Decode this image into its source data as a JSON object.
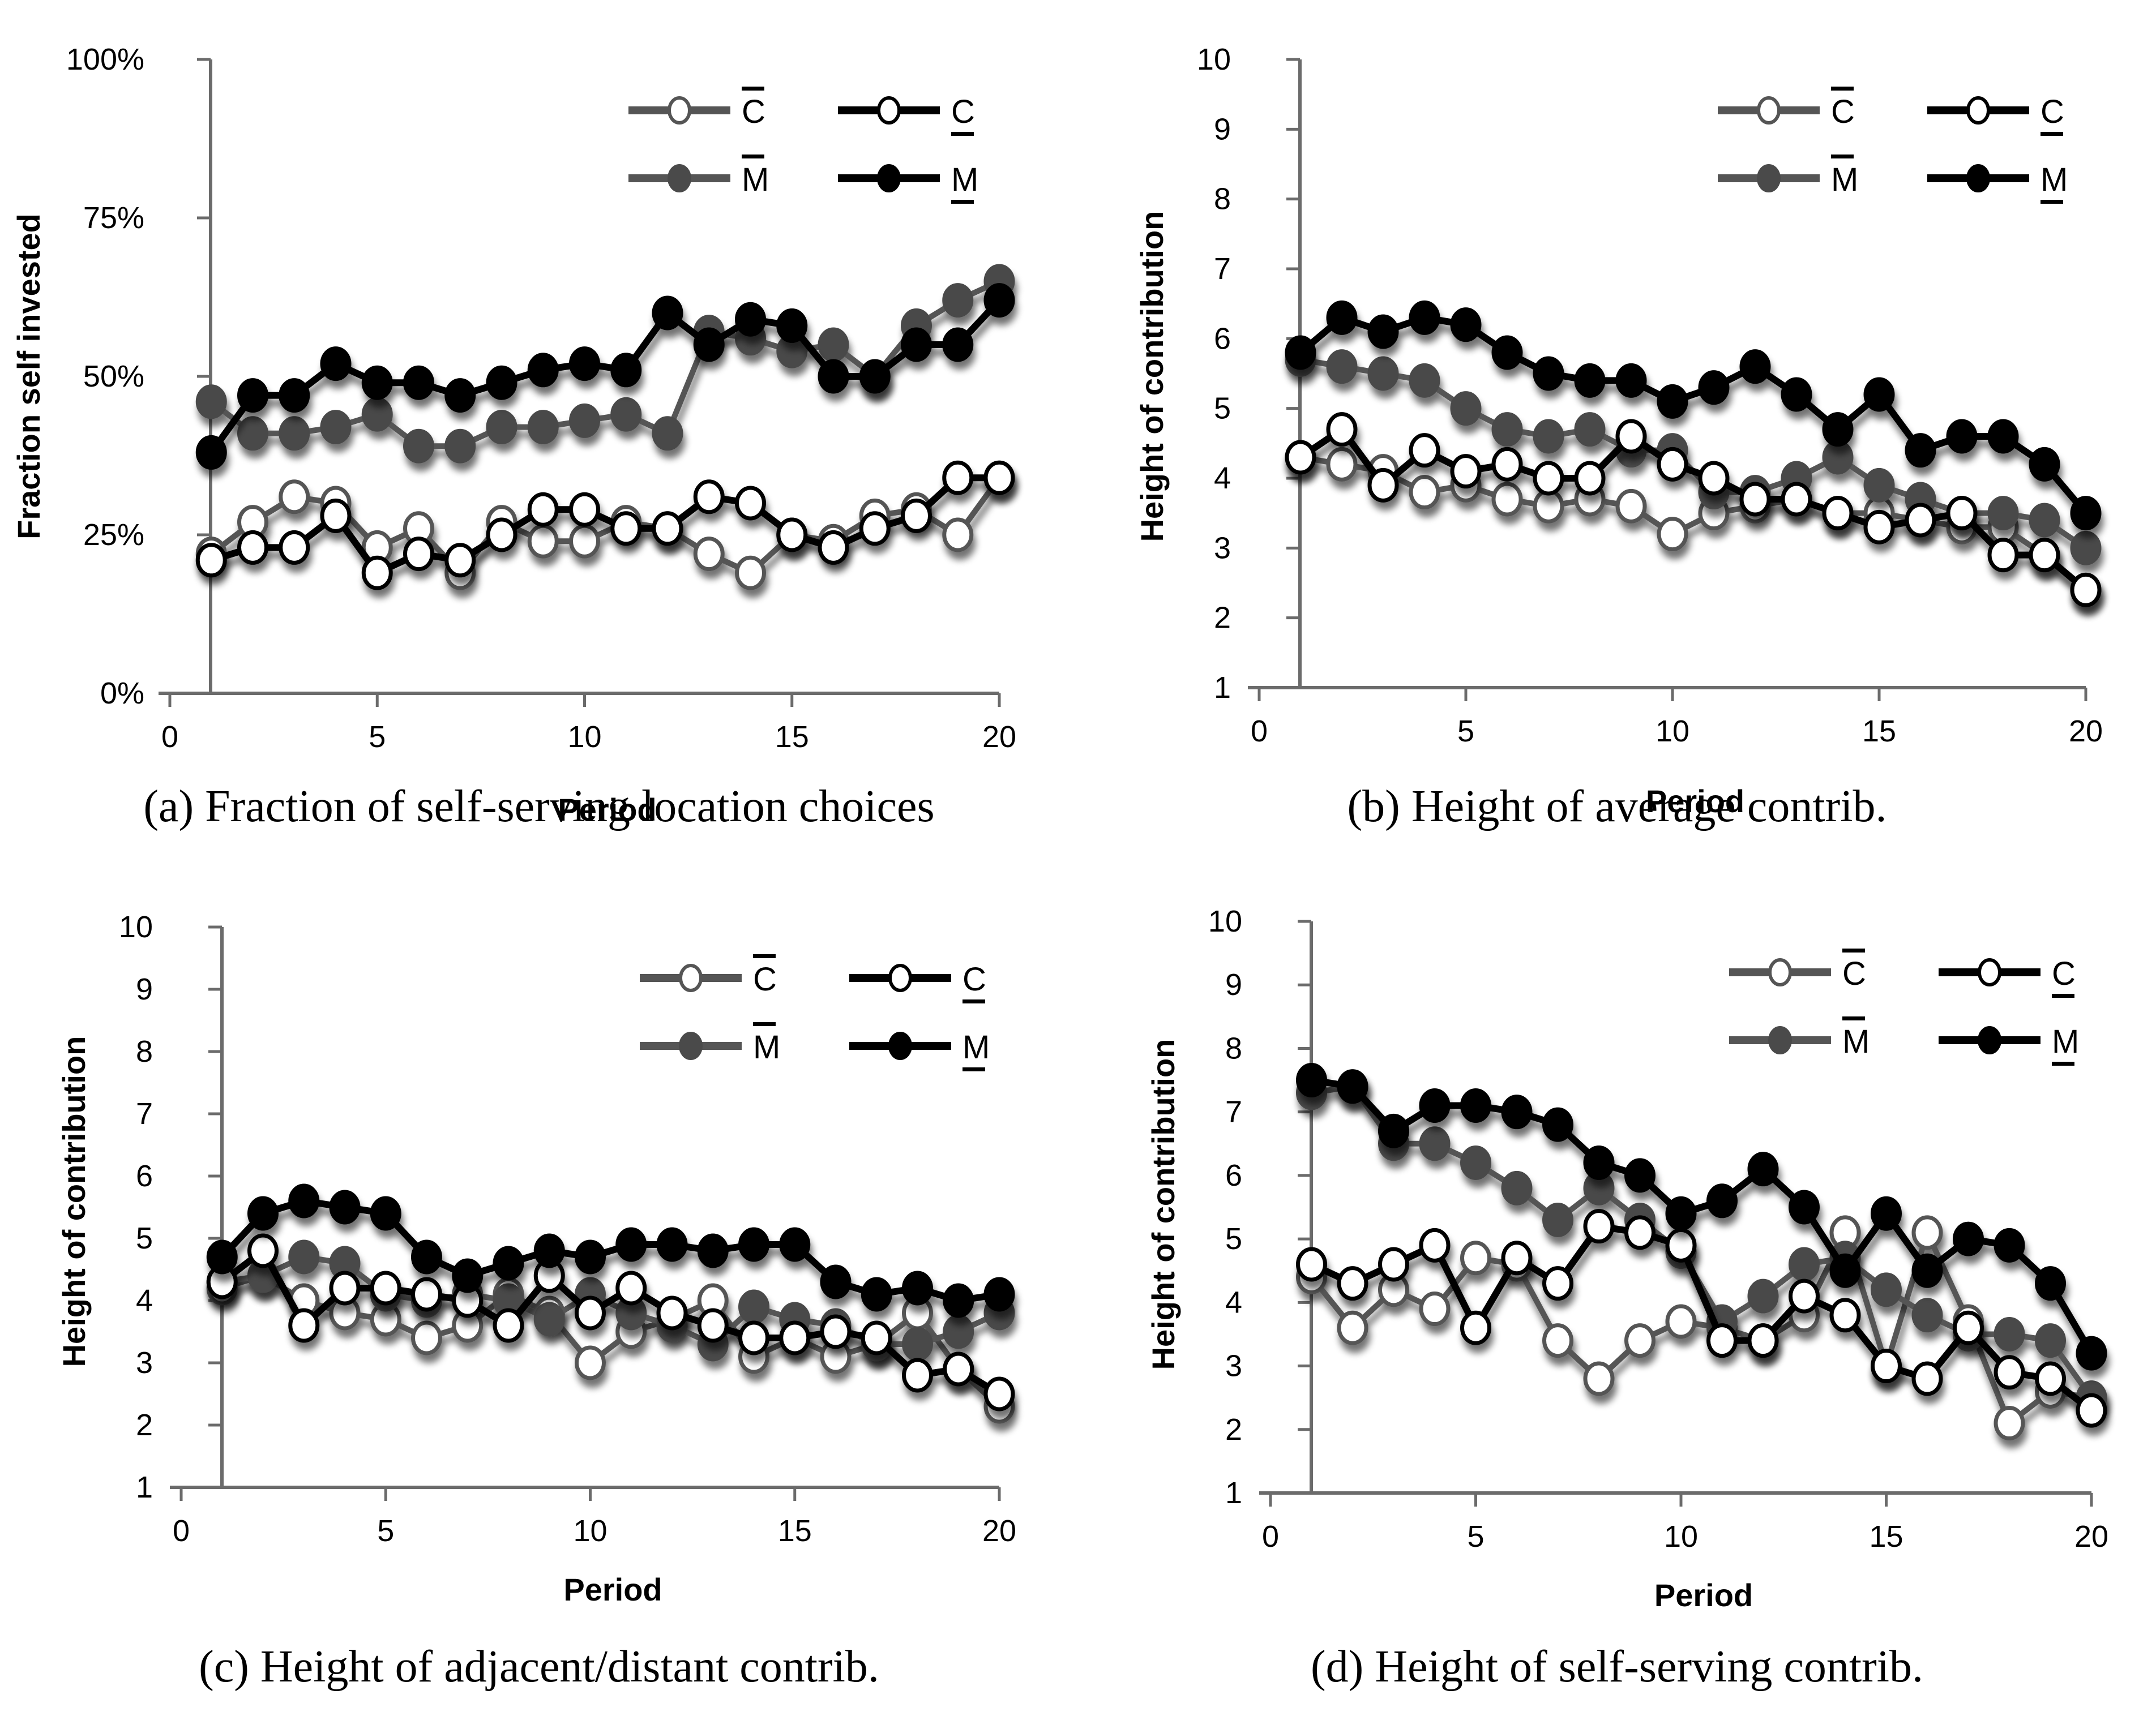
{
  "figure": {
    "captions": [
      "(a) Fraction of self-serving location choices",
      "(b) Height of average contrib.",
      "(c) Height of adjacent/distant contrib.",
      "(d) Height of self-serving contrib."
    ]
  },
  "legend": {
    "entries": [
      {
        "key": "Cbar",
        "letter": "C",
        "mark": "overline",
        "color": "#555555",
        "marker": "open"
      },
      {
        "key": "Cund",
        "letter": "C",
        "mark": "underline",
        "color": "#000000",
        "marker": "open"
      },
      {
        "key": "Mbar",
        "letter": "M",
        "mark": "overline",
        "color": "#555555",
        "marker": "filled"
      },
      {
        "key": "Mund",
        "letter": "M",
        "mark": "underline",
        "color": "#000000",
        "marker": "filled"
      }
    ]
  },
  "chart_data": [
    {
      "type": "line",
      "title": "",
      "caption": "(a) Fraction of self-serving location choices",
      "xlabel": "Period",
      "ylabel": "Fraction self invested",
      "xlim": [
        0,
        20
      ],
      "ylim": [
        0,
        100
      ],
      "xticks": [
        "0",
        "5",
        "10",
        "15",
        "20"
      ],
      "yticks": [
        "0%",
        "25%",
        "50%",
        "75%",
        "100%"
      ],
      "ytick_values": [
        0,
        25,
        50,
        75,
        100
      ],
      "legend_position": "top-right",
      "x": [
        1,
        2,
        3,
        4,
        5,
        6,
        7,
        8,
        9,
        10,
        11,
        12,
        13,
        14,
        15,
        16,
        17,
        18,
        19,
        20
      ],
      "series": [
        {
          "name": "C̄ (overline C)",
          "key": "Cbar",
          "values": [
            22,
            27,
            31,
            30,
            23,
            26,
            19,
            27,
            24,
            24,
            27,
            26,
            22,
            19,
            25,
            24,
            28,
            29,
            25,
            34
          ]
        },
        {
          "name": "C̲ (underline C)",
          "key": "Cund",
          "values": [
            21,
            23,
            23,
            28,
            19,
            22,
            21,
            25,
            29,
            29,
            26,
            26,
            31,
            30,
            25,
            23,
            26,
            28,
            34,
            34
          ]
        },
        {
          "name": "M̄ (overline M)",
          "key": "Mbar",
          "values": [
            46,
            41,
            41,
            42,
            44,
            39,
            39,
            42,
            42,
            43,
            44,
            41,
            57,
            56,
            54,
            55,
            50,
            58,
            62,
            65
          ]
        },
        {
          "name": "M̲ (underline M)",
          "key": "Mund",
          "values": [
            38,
            47,
            47,
            52,
            49,
            49,
            47,
            49,
            51,
            52,
            51,
            60,
            55,
            59,
            58,
            50,
            50,
            55,
            55,
            62
          ]
        }
      ]
    },
    {
      "type": "line",
      "title": "",
      "caption": "(b) Height of average contrib.",
      "xlabel": "Period",
      "ylabel": "Height of contribution",
      "xlim": [
        0,
        20
      ],
      "ylim": [
        1,
        10
      ],
      "xticks": [
        "0",
        "5",
        "10",
        "15",
        "20"
      ],
      "yticks": [
        "1",
        "2",
        "3",
        "4",
        "5",
        "6",
        "7",
        "8",
        "9",
        "10"
      ],
      "ytick_values": [
        1,
        2,
        3,
        4,
        5,
        6,
        7,
        8,
        9,
        10
      ],
      "legend_position": "top-right",
      "x": [
        1,
        2,
        3,
        4,
        5,
        6,
        7,
        8,
        9,
        10,
        11,
        12,
        13,
        14,
        15,
        16,
        17,
        18,
        19,
        20
      ],
      "series": [
        {
          "name": "C̄ (overline C)",
          "key": "Cbar",
          "values": [
            4.3,
            4.2,
            4.1,
            3.8,
            3.9,
            3.7,
            3.6,
            3.7,
            3.6,
            3.2,
            3.5,
            3.6,
            3.7,
            3.5,
            3.5,
            3.4,
            3.3,
            3.3,
            2.9,
            2.4
          ]
        },
        {
          "name": "C̲ (underline C)",
          "key": "Cund",
          "values": [
            4.3,
            4.7,
            3.9,
            4.4,
            4.1,
            4.2,
            4.0,
            4.0,
            4.6,
            4.2,
            4.0,
            3.7,
            3.7,
            3.5,
            3.3,
            3.4,
            3.5,
            2.9,
            2.9,
            2.4
          ]
        },
        {
          "name": "M̄ (overline M)",
          "key": "Mbar",
          "values": [
            5.7,
            5.6,
            5.5,
            5.4,
            5.0,
            4.7,
            4.6,
            4.7,
            4.4,
            4.4,
            3.8,
            3.8,
            4.0,
            4.3,
            3.9,
            3.7,
            3.5,
            3.5,
            3.4,
            3.0
          ]
        },
        {
          "name": "M̲ (underline M)",
          "key": "Mund",
          "values": [
            5.8,
            6.3,
            6.1,
            6.3,
            6.2,
            5.8,
            5.5,
            5.4,
            5.4,
            5.1,
            5.3,
            5.6,
            5.2,
            4.7,
            5.2,
            4.4,
            4.6,
            4.6,
            4.2,
            3.5
          ]
        }
      ]
    },
    {
      "type": "line",
      "title": "",
      "caption": "(c) Height of adjacent/distant contrib.",
      "xlabel": "Period",
      "ylabel": "Height of contribution",
      "xlim": [
        0,
        20
      ],
      "ylim": [
        1,
        10
      ],
      "xticks": [
        "0",
        "5",
        "10",
        "15",
        "20"
      ],
      "yticks": [
        "1",
        "2",
        "3",
        "4",
        "5",
        "6",
        "7",
        "8",
        "9",
        "10"
      ],
      "ytick_values": [
        1,
        2,
        3,
        4,
        5,
        6,
        7,
        8,
        9,
        10
      ],
      "legend_position": "top-right",
      "x": [
        1,
        2,
        3,
        4,
        5,
        6,
        7,
        8,
        9,
        10,
        11,
        12,
        13,
        14,
        15,
        16,
        17,
        18,
        19,
        20
      ],
      "series": [
        {
          "name": "C̄ (overline C)",
          "key": "Cbar",
          "values": [
            4.2,
            4.4,
            4.0,
            3.8,
            3.7,
            3.4,
            3.6,
            4.1,
            3.8,
            3.0,
            3.5,
            3.7,
            4.0,
            3.1,
            3.4,
            3.1,
            3.3,
            3.8,
            2.9,
            2.3
          ]
        },
        {
          "name": "C̲ (underline C)",
          "key": "Cund",
          "values": [
            4.3,
            4.8,
            3.6,
            4.2,
            4.2,
            4.1,
            4.0,
            3.6,
            4.4,
            3.8,
            4.2,
            3.8,
            3.6,
            3.4,
            3.4,
            3.5,
            3.4,
            2.8,
            2.9,
            2.5
          ]
        },
        {
          "name": "M̄ (overline M)",
          "key": "Mbar",
          "values": [
            4.3,
            4.4,
            4.7,
            4.6,
            4.1,
            4.0,
            4.1,
            4.0,
            3.7,
            4.1,
            3.8,
            3.6,
            3.3,
            3.9,
            3.7,
            3.6,
            3.3,
            3.3,
            3.5,
            3.8
          ]
        },
        {
          "name": "M̲ (underline M)",
          "key": "Mund",
          "values": [
            4.7,
            5.4,
            5.6,
            5.5,
            5.4,
            4.7,
            4.4,
            4.6,
            4.8,
            4.7,
            4.9,
            4.9,
            4.8,
            4.9,
            4.9,
            4.3,
            4.1,
            4.2,
            4.0,
            4.1
          ]
        }
      ]
    },
    {
      "type": "line",
      "title": "",
      "caption": "(d) Height of self-serving contrib.",
      "xlabel": "Period",
      "ylabel": "Height of contribution",
      "xlim": [
        0,
        20
      ],
      "ylim": [
        1,
        10
      ],
      "xticks": [
        "0",
        "5",
        "10",
        "15",
        "20"
      ],
      "yticks": [
        "1",
        "2",
        "3",
        "4",
        "5",
        "6",
        "7",
        "8",
        "9",
        "10"
      ],
      "ytick_values": [
        1,
        2,
        3,
        4,
        5,
        6,
        7,
        8,
        9,
        10
      ],
      "legend_position": "top-right",
      "x": [
        1,
        2,
        3,
        4,
        5,
        6,
        7,
        8,
        9,
        10,
        11,
        12,
        13,
        14,
        15,
        16,
        17,
        18,
        19,
        20
      ],
      "series": [
        {
          "name": "C̄ (overline C)",
          "key": "Cbar",
          "values": [
            4.4,
            3.6,
            4.2,
            3.9,
            4.7,
            4.6,
            3.4,
            2.8,
            3.4,
            3.7,
            3.6,
            3.4,
            3.8,
            5.1,
            3.0,
            5.1,
            3.7,
            2.1,
            2.6,
            2.5
          ]
        },
        {
          "name": "C̲ (underline C)",
          "key": "Cund",
          "values": [
            4.6,
            4.3,
            4.6,
            4.9,
            3.6,
            4.7,
            4.3,
            5.2,
            5.1,
            4.9,
            3.4,
            3.4,
            4.1,
            3.8,
            3.0,
            2.8,
            3.6,
            2.9,
            2.8,
            2.3
          ]
        },
        {
          "name": "M̄ (overline M)",
          "key": "Mbar",
          "values": [
            7.3,
            7.4,
            6.5,
            6.5,
            6.2,
            5.8,
            5.3,
            5.8,
            5.3,
            4.8,
            3.7,
            4.1,
            4.6,
            4.7,
            4.2,
            3.8,
            3.5,
            3.5,
            3.4,
            2.5
          ]
        },
        {
          "name": "M̲ (underline M)",
          "key": "Mund",
          "values": [
            7.5,
            7.4,
            6.7,
            7.1,
            7.1,
            7.0,
            6.8,
            6.2,
            6.0,
            5.4,
            5.6,
            6.1,
            5.5,
            4.5,
            5.4,
            4.5,
            5.0,
            4.9,
            4.3,
            3.2
          ]
        }
      ]
    }
  ]
}
